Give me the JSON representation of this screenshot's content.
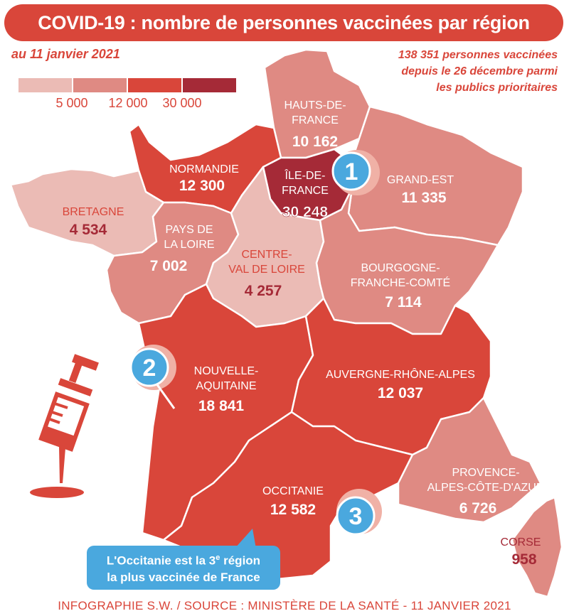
{
  "title": "COVID-19 : nombre de personnes vaccinées par région",
  "date": "au 11 janvier 2021",
  "total_note": {
    "line1": "138 351 personnes vaccinées",
    "line2": "depuis le 26 décembre parmi",
    "line3": "les publics prioritaires"
  },
  "legend": {
    "labels": [
      "5 000",
      "12 000",
      "30 000"
    ],
    "colors": [
      "#ebbbb5",
      "#df8a83",
      "#d9463a",
      "#a52a37"
    ]
  },
  "regions": {
    "hauts_de_france": {
      "line1": "HAUTS-DE-",
      "line2": "FRANCE",
      "value": "10 162",
      "n": 10162
    },
    "ile_de_france": {
      "line1": "ÎLE-DE-",
      "line2": "FRANCE",
      "value": "30 248",
      "n": 30248
    },
    "grand_est": {
      "line1": "GRAND-EST",
      "value": "11 335",
      "n": 11335
    },
    "normandie": {
      "line1": "NORMANDIE",
      "value": "12 300",
      "n": 12300
    },
    "bretagne": {
      "line1": "BRETAGNE",
      "value": "4 534",
      "n": 4534
    },
    "pays_de_la_loire": {
      "line1": "PAYS DE",
      "line2": "LA LOIRE",
      "value": "7 002",
      "n": 7002
    },
    "centre_val_de_loire": {
      "line1": "CENTRE-",
      "line2": "VAL DE LOIRE",
      "value": "4 257",
      "n": 4257
    },
    "bourgogne_franche_comte": {
      "line1": "BOURGOGNE-",
      "line2": "FRANCHE-COMTÉ",
      "value": "7 114",
      "n": 7114
    },
    "nouvelle_aquitaine": {
      "line1": "NOUVELLE-",
      "line2": "AQUITAINE",
      "value": "18 841",
      "n": 18841
    },
    "auvergne_rhone_alpes": {
      "line1": "AUVERGNE-RHÔNE-ALPES",
      "value": "12 037",
      "n": 12037
    },
    "occitanie": {
      "line1": "OCCITANIE",
      "value": "12 582",
      "n": 12582
    },
    "paca": {
      "line1": "PROVENCE-",
      "line2": "ALPES-CÔTE-D'AZUR",
      "value": "6 726",
      "n": 6726
    },
    "corse": {
      "line1": "CORSE",
      "value": "958",
      "n": 958
    }
  },
  "markers": {
    "m1": "1",
    "m2": "2",
    "m3": "3"
  },
  "callout": {
    "line1": "L'Occitanie est la 3",
    "sup": "e",
    "line1_end": " région",
    "line2": "la plus vaccinée de France"
  },
  "footer": "INFOGRAPHIE S.W. / SOURCE : MINISTÈRE DE LA SANTÉ - 11 JANVIER 2021",
  "syringe_icon": "syringe-icon"
}
